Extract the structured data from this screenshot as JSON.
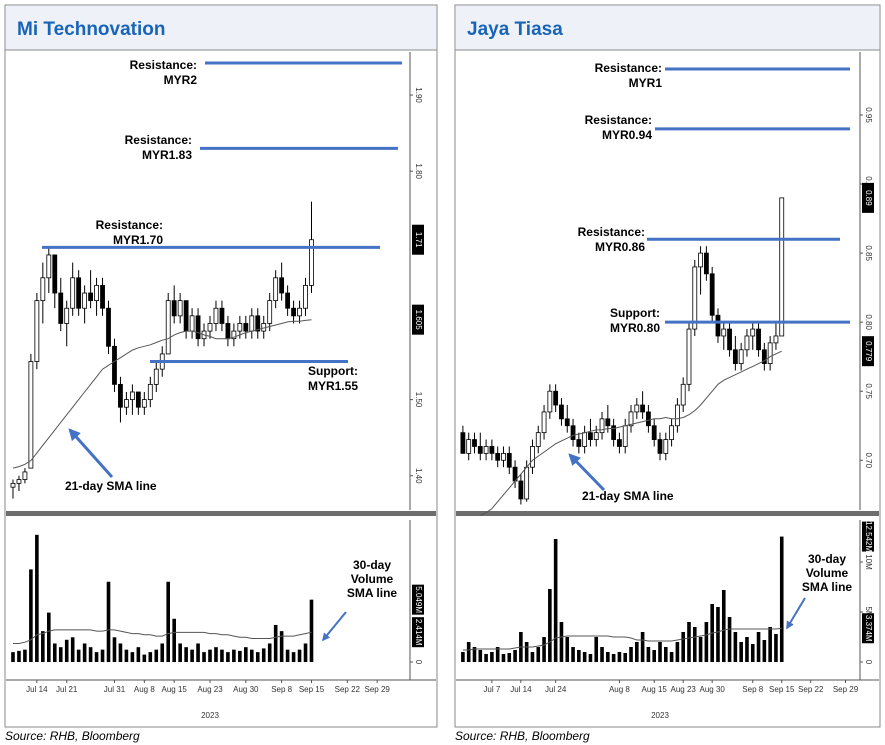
{
  "chart_data": [
    {
      "type": "candlestick",
      "title": "Mi Technovation",
      "source": "Source: RHB, Bloomberg",
      "up_color": "#ffffff",
      "down_color": "#000000",
      "line_color": "#4472c4",
      "xlim": [
        -0.5,
        66.5
      ],
      "xticks": [
        {
          "value": 4,
          "label": "Jul 14"
        },
        {
          "value": 9,
          "label": "Jul 21"
        },
        {
          "value": 17,
          "label": "Jul 31"
        },
        {
          "value": 22,
          "label": "Aug 8"
        },
        {
          "value": 27,
          "label": "Aug 15"
        },
        {
          "value": 33,
          "label": "Aug 23"
        },
        {
          "value": 39,
          "label": "Aug 30"
        },
        {
          "value": 45,
          "label": "Sep 8"
        },
        {
          "value": 50,
          "label": "Sep 15"
        },
        {
          "value": 56,
          "label": "Sep 22"
        },
        {
          "value": 61,
          "label": "Sep 29"
        }
      ],
      "year_label": "2023",
      "ylim": [
        1.355,
        1.95
      ],
      "yticks": [
        {
          "value": 1.4,
          "label": "1.40"
        },
        {
          "value": 1.5,
          "label": "1.50"
        },
        {
          "value": 1.8,
          "label": "1.80"
        },
        {
          "value": 1.9,
          "label": "1.90"
        }
      ],
      "price_tags": [
        1.71,
        1.605
      ],
      "ohlc": [
        [
          1.385,
          1.395,
          1.37,
          1.39
        ],
        [
          1.39,
          1.4,
          1.38,
          1.395
        ],
        [
          1.395,
          1.41,
          1.39,
          1.405
        ],
        [
          1.41,
          1.56,
          1.41,
          1.55
        ],
        [
          1.55,
          1.64,
          1.54,
          1.63
        ],
        [
          1.63,
          1.68,
          1.6,
          1.66
        ],
        [
          1.66,
          1.7,
          1.64,
          1.69
        ],
        [
          1.69,
          1.69,
          1.62,
          1.64
        ],
        [
          1.64,
          1.66,
          1.59,
          1.6
        ],
        [
          1.6,
          1.63,
          1.57,
          1.62
        ],
        [
          1.62,
          1.68,
          1.61,
          1.66
        ],
        [
          1.66,
          1.67,
          1.61,
          1.62
        ],
        [
          1.62,
          1.65,
          1.6,
          1.64
        ],
        [
          1.64,
          1.67,
          1.62,
          1.63
        ],
        [
          1.63,
          1.66,
          1.61,
          1.65
        ],
        [
          1.65,
          1.66,
          1.61,
          1.62
        ],
        [
          1.62,
          1.63,
          1.56,
          1.57
        ],
        [
          1.57,
          1.58,
          1.51,
          1.52
        ],
        [
          1.52,
          1.53,
          1.47,
          1.49
        ],
        [
          1.49,
          1.51,
          1.48,
          1.5
        ],
        [
          1.5,
          1.52,
          1.48,
          1.51
        ],
        [
          1.51,
          1.51,
          1.48,
          1.49
        ],
        [
          1.49,
          1.51,
          1.48,
          1.5
        ],
        [
          1.5,
          1.53,
          1.49,
          1.52
        ],
        [
          1.52,
          1.55,
          1.51,
          1.54
        ],
        [
          1.54,
          1.57,
          1.53,
          1.56
        ],
        [
          1.56,
          1.64,
          1.56,
          1.63
        ],
        [
          1.63,
          1.65,
          1.6,
          1.61
        ],
        [
          1.61,
          1.64,
          1.6,
          1.63
        ],
        [
          1.63,
          1.63,
          1.58,
          1.59
        ],
        [
          1.59,
          1.62,
          1.58,
          1.61
        ],
        [
          1.61,
          1.62,
          1.57,
          1.58
        ],
        [
          1.58,
          1.6,
          1.57,
          1.59
        ],
        [
          1.59,
          1.61,
          1.58,
          1.6
        ],
        [
          1.6,
          1.63,
          1.59,
          1.62
        ],
        [
          1.62,
          1.63,
          1.59,
          1.6
        ],
        [
          1.6,
          1.61,
          1.57,
          1.58
        ],
        [
          1.58,
          1.6,
          1.57,
          1.59
        ],
        [
          1.59,
          1.61,
          1.58,
          1.6
        ],
        [
          1.6,
          1.61,
          1.58,
          1.59
        ],
        [
          1.59,
          1.62,
          1.58,
          1.61
        ],
        [
          1.61,
          1.62,
          1.58,
          1.59
        ],
        [
          1.59,
          1.61,
          1.58,
          1.6
        ],
        [
          1.6,
          1.64,
          1.59,
          1.63
        ],
        [
          1.63,
          1.67,
          1.62,
          1.66
        ],
        [
          1.66,
          1.68,
          1.63,
          1.64
        ],
        [
          1.64,
          1.65,
          1.61,
          1.62
        ],
        [
          1.62,
          1.63,
          1.6,
          1.61
        ],
        [
          1.61,
          1.63,
          1.6,
          1.62
        ],
        [
          1.62,
          1.66,
          1.61,
          1.65
        ],
        [
          1.65,
          1.76,
          1.64,
          1.71
        ]
      ],
      "sma_values": [
        1.41,
        1.412,
        1.415,
        1.42,
        1.43,
        1.44,
        1.45,
        1.46,
        1.47,
        1.48,
        1.49,
        1.5,
        1.51,
        1.52,
        1.53,
        1.54,
        1.545,
        1.55,
        1.555,
        1.56,
        1.565,
        1.568,
        1.57,
        1.572,
        1.575,
        1.578,
        1.58,
        1.585,
        1.588,
        1.59,
        1.59,
        1.588,
        1.585,
        1.583,
        1.58,
        1.58,
        1.58,
        1.582,
        1.585,
        1.588,
        1.59,
        1.592,
        1.594,
        1.596,
        1.598,
        1.6,
        1.602,
        1.603,
        1.603,
        1.604,
        1.605
      ],
      "sma_label": "21-day SMA line",
      "annotations": [
        {
          "lines": [
            "Resistance:",
            "MYR2"
          ]
        },
        {
          "lines": [
            "Resistance:",
            "MYR1.83"
          ],
          "level": 1.83
        },
        {
          "lines": [
            "Resistance:",
            "MYR1.70"
          ],
          "level": 1.7
        },
        {
          "lines": [
            "Support:",
            "MYR1.55"
          ],
          "level": 1.55
        }
      ],
      "volume": {
        "ylim": [
          0,
          11.5
        ],
        "yticks": [
          0
        ],
        "tags": [
          {
            "value": 5.049,
            "label": "5.049M"
          },
          {
            "value": 2.414,
            "label": "2.414M"
          }
        ],
        "values": [
          0.8,
          0.9,
          1.0,
          7.5,
          10.3,
          2.5,
          4.0,
          1.5,
          1.2,
          1.8,
          2.0,
          1.0,
          1.5,
          1.2,
          0.8,
          1.0,
          6.5,
          2.0,
          1.5,
          1.0,
          0.8,
          1.2,
          0.6,
          0.8,
          1.0,
          1.5,
          6.5,
          3.5,
          1.5,
          1.2,
          1.0,
          1.5,
          0.8,
          1.0,
          1.2,
          1.0,
          0.8,
          1.0,
          0.9,
          1.2,
          1.0,
          0.8,
          1.1,
          1.5,
          3.0,
          2.5,
          1.0,
          0.8,
          1.0,
          1.5,
          5.049
        ],
        "sma_values": [
          1.5,
          1.5,
          1.6,
          1.8,
          2.2,
          2.3,
          2.5,
          2.6,
          2.6,
          2.6,
          2.6,
          2.6,
          2.6,
          2.6,
          2.5,
          2.5,
          2.6,
          2.6,
          2.5,
          2.4,
          2.3,
          2.3,
          2.2,
          2.2,
          2.1,
          2.1,
          2.3,
          2.4,
          2.4,
          2.4,
          2.4,
          2.4,
          2.4,
          2.3,
          2.3,
          2.2,
          2.2,
          2.1,
          2.0,
          2.0,
          1.9,
          1.9,
          1.9,
          1.9,
          2.0,
          2.1,
          2.1,
          2.1,
          2.2,
          2.3,
          2.414
        ],
        "sma_label": [
          "30-day",
          "Volume",
          "SMA line"
        ]
      }
    },
    {
      "type": "candlestick",
      "title": "Jaya Tiasa",
      "source": "Source: RHB, Bloomberg",
      "up_color": "#ffffff",
      "down_color": "#000000",
      "line_color": "#4472c4",
      "xlim": [
        -0.5,
        68.5
      ],
      "xticks": [
        {
          "value": 5,
          "label": "Jul 7"
        },
        {
          "value": 10,
          "label": "Jul 14"
        },
        {
          "value": 16,
          "label": "Jul 24"
        },
        {
          "value": 27,
          "label": "Aug 8"
        },
        {
          "value": 33,
          "label": "Aug 15"
        },
        {
          "value": 38,
          "label": "Aug 23"
        },
        {
          "value": 43,
          "label": "Aug 30"
        },
        {
          "value": 50,
          "label": "Sep 8"
        },
        {
          "value": 55,
          "label": "Sep 15"
        },
        {
          "value": 60,
          "label": "Sep 22"
        },
        {
          "value": 66,
          "label": "Sep 29"
        }
      ],
      "year_label": "2023",
      "ylim": [
        0.664,
        0.992
      ],
      "yticks": [
        {
          "value": 0.7,
          "label": "0.70"
        },
        0.75,
        {
          "value": 0.8,
          "label": "0.80"
        },
        0.85,
        {
          "value": 0.9,
          "label": "0.90"
        },
        0.95
      ],
      "price_tags": [
        0.89,
        0.779
      ],
      "ohlc": [
        [
          0.72,
          0.725,
          0.705,
          0.705
        ],
        [
          0.705,
          0.72,
          0.7,
          0.715
        ],
        [
          0.715,
          0.72,
          0.705,
          0.71
        ],
        [
          0.71,
          0.72,
          0.7,
          0.705
        ],
        [
          0.705,
          0.715,
          0.7,
          0.71
        ],
        [
          0.71,
          0.715,
          0.7,
          0.705
        ],
        [
          0.705,
          0.71,
          0.695,
          0.7
        ],
        [
          0.7,
          0.71,
          0.695,
          0.705
        ],
        [
          0.705,
          0.71,
          0.69,
          0.695
        ],
        [
          0.695,
          0.7,
          0.68,
          0.685
        ],
        [
          0.685,
          0.69,
          0.668,
          0.672
        ],
        [
          0.672,
          0.7,
          0.67,
          0.695
        ],
        [
          0.695,
          0.715,
          0.69,
          0.71
        ],
        [
          0.71,
          0.725,
          0.705,
          0.72
        ],
        [
          0.72,
          0.74,
          0.715,
          0.735
        ],
        [
          0.735,
          0.755,
          0.73,
          0.75
        ],
        [
          0.75,
          0.755,
          0.735,
          0.74
        ],
        [
          0.74,
          0.745,
          0.725,
          0.73
        ],
        [
          0.73,
          0.74,
          0.72,
          0.725
        ],
        [
          0.725,
          0.73,
          0.71,
          0.715
        ],
        [
          0.715,
          0.72,
          0.705,
          0.71
        ],
        [
          0.71,
          0.725,
          0.705,
          0.72
        ],
        [
          0.72,
          0.73,
          0.71,
          0.715
        ],
        [
          0.715,
          0.725,
          0.71,
          0.72
        ],
        [
          0.72,
          0.735,
          0.715,
          0.73
        ],
        [
          0.73,
          0.74,
          0.72,
          0.725
        ],
        [
          0.725,
          0.73,
          0.71,
          0.715
        ],
        [
          0.715,
          0.72,
          0.705,
          0.71
        ],
        [
          0.71,
          0.73,
          0.705,
          0.725
        ],
        [
          0.725,
          0.74,
          0.72,
          0.735
        ],
        [
          0.735,
          0.745,
          0.73,
          0.74
        ],
        [
          0.74,
          0.75,
          0.73,
          0.735
        ],
        [
          0.735,
          0.74,
          0.72,
          0.725
        ],
        [
          0.725,
          0.73,
          0.71,
          0.715
        ],
        [
          0.715,
          0.72,
          0.7,
          0.705
        ],
        [
          0.705,
          0.72,
          0.7,
          0.715
        ],
        [
          0.715,
          0.73,
          0.71,
          0.725
        ],
        [
          0.725,
          0.745,
          0.72,
          0.74
        ],
        [
          0.74,
          0.76,
          0.735,
          0.755
        ],
        [
          0.755,
          0.8,
          0.75,
          0.795
        ],
        [
          0.795,
          0.845,
          0.79,
          0.84
        ],
        [
          0.84,
          0.855,
          0.82,
          0.85
        ],
        [
          0.85,
          0.855,
          0.83,
          0.835
        ],
        [
          0.835,
          0.84,
          0.8,
          0.805
        ],
        [
          0.805,
          0.81,
          0.785,
          0.79
        ],
        [
          0.79,
          0.8,
          0.78,
          0.795
        ],
        [
          0.795,
          0.8,
          0.775,
          0.78
        ],
        [
          0.78,
          0.79,
          0.765,
          0.77
        ],
        [
          0.77,
          0.785,
          0.765,
          0.78
        ],
        [
          0.78,
          0.795,
          0.775,
          0.79
        ],
        [
          0.79,
          0.8,
          0.78,
          0.795
        ],
        [
          0.795,
          0.8,
          0.775,
          0.78
        ],
        [
          0.78,
          0.785,
          0.765,
          0.77
        ],
        [
          0.77,
          0.79,
          0.765,
          0.785
        ],
        [
          0.785,
          0.8,
          0.78,
          0.79
        ],
        [
          0.79,
          0.89,
          0.79,
          0.89
        ]
      ],
      "sma_values": [
        null,
        null,
        null,
        0.66,
        0.662,
        0.665,
        0.67,
        0.675,
        0.68,
        0.685,
        0.69,
        0.695,
        0.7,
        0.703,
        0.706,
        0.709,
        0.712,
        0.714,
        0.716,
        0.718,
        0.719,
        0.72,
        0.721,
        0.722,
        0.722,
        0.723,
        0.723,
        0.724,
        0.725,
        0.726,
        0.727,
        0.728,
        0.729,
        0.73,
        0.73,
        0.731,
        0.73,
        0.73,
        0.731,
        0.733,
        0.736,
        0.74,
        0.745,
        0.75,
        0.755,
        0.758,
        0.76,
        0.762,
        0.764,
        0.766,
        0.768,
        0.77,
        0.772,
        0.775,
        0.777,
        0.779
      ],
      "sma_label": "21-day SMA line",
      "annotations": [
        {
          "lines": [
            "Resistance:",
            "MYR1"
          ]
        },
        {
          "lines": [
            "Resistance:",
            "MYR0.94"
          ],
          "level": 0.94
        },
        {
          "lines": [
            "Resistance:",
            "MYR0.86"
          ],
          "level": 0.86
        },
        {
          "lines": [
            "Support:",
            "MYR0.80"
          ],
          "level": 0.8
        }
      ],
      "volume": {
        "ylim": [
          0,
          14.2
        ],
        "yticks": [
          0,
          {
            "value": 5,
            "label": "5M"
          },
          {
            "value": 10,
            "label": "10M"
          }
        ],
        "tags": [
          {
            "value": 12.542,
            "label": "12.542M"
          },
          {
            "value": 3.374,
            "label": "3.374M"
          }
        ],
        "values": [
          1.0,
          2.0,
          1.5,
          1.2,
          0.8,
          1.0,
          1.5,
          0.8,
          0.9,
          1.2,
          3.0,
          2.0,
          1.0,
          1.5,
          2.5,
          7.3,
          12.3,
          4.0,
          2.5,
          1.5,
          1.2,
          1.0,
          0.8,
          2.5,
          1.5,
          1.0,
          0.8,
          1.0,
          0.9,
          1.5,
          2.0,
          3.0,
          1.5,
          1.2,
          2.0,
          1.5,
          1.0,
          2.0,
          3.0,
          4.0,
          3.5,
          2.5,
          4.0,
          5.8,
          5.5,
          7.2,
          4.5,
          3.0,
          2.0,
          2.5,
          1.8,
          3.0,
          2.2,
          3.5,
          2.8,
          12.542
        ],
        "sma_values": [
          1.2,
          1.2,
          1.3,
          1.3,
          1.3,
          1.3,
          1.3,
          1.3,
          1.3,
          1.4,
          1.5,
          1.5,
          1.5,
          1.6,
          1.7,
          2.0,
          2.4,
          2.5,
          2.6,
          2.6,
          2.6,
          2.6,
          2.6,
          2.6,
          2.6,
          2.6,
          2.5,
          2.5,
          2.5,
          2.4,
          2.2,
          2.2,
          2.1,
          2.1,
          2.1,
          2.1,
          2.1,
          2.2,
          2.3,
          2.4,
          2.5,
          2.6,
          2.7,
          2.9,
          3.0,
          3.2,
          3.3,
          3.3,
          3.3,
          3.3,
          3.3,
          3.3,
          3.3,
          3.3,
          3.3,
          3.374
        ],
        "sma_label": [
          "30-day",
          "Volume",
          "SMA line"
        ]
      }
    }
  ]
}
